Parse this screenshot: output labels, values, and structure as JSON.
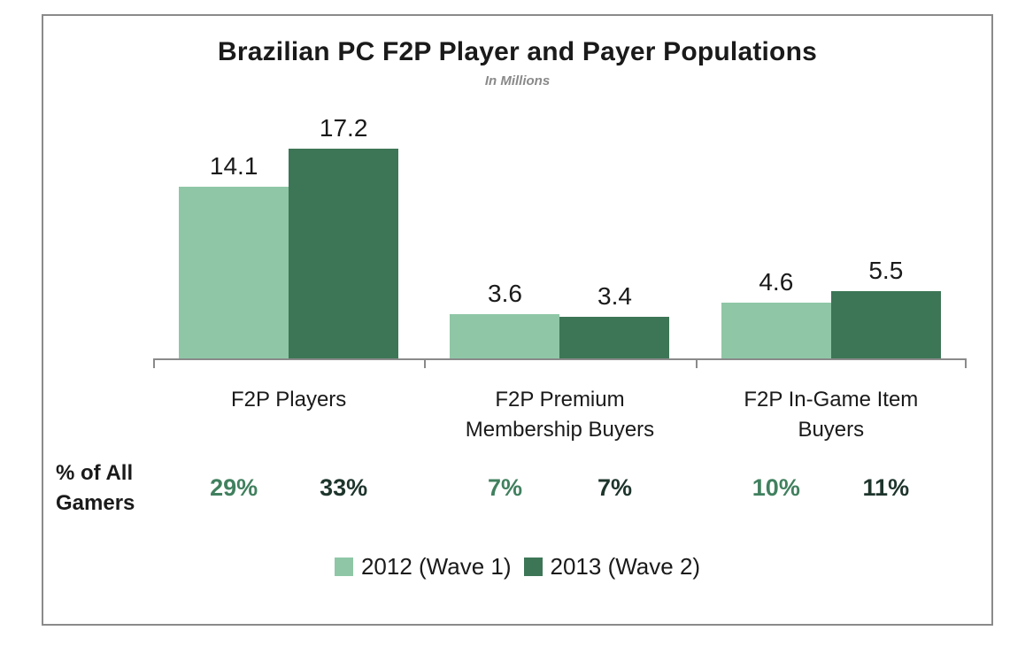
{
  "title": "Brazilian PC F2P Player and Payer Populations",
  "subtitle": "In Millions",
  "row_label_line1": "% of All",
  "row_label_line2": "Gamers",
  "legend": [
    {
      "label": "2012 (Wave 1)",
      "color": "#8fc7a6"
    },
    {
      "label": "2013 (Wave 2)",
      "color": "#3d7656"
    }
  ],
  "colors": {
    "series_2012_bar": "#8fc7a6",
    "series_2013_bar": "#3d7656",
    "pct_2012_text": "#41805f",
    "pct_2013_text": "#1e352c",
    "axis_and_border": "#8a8a8a",
    "subtitle_text": "#8a8a8a",
    "title_text": "#1a1a1a"
  },
  "chart_data": {
    "type": "bar",
    "title": "Brazilian PC F2P Player and Payer Populations",
    "subtitle": "In Millions",
    "xlabel": "",
    "ylabel": "",
    "unit": "millions",
    "ylim": [
      0,
      20
    ],
    "grid": false,
    "legend_position": "bottom",
    "value_labels_shown": true,
    "categories": [
      "F2P Players",
      "F2P Premium Membership Buyers",
      "F2P In-Game Item Buyers"
    ],
    "series": [
      {
        "name": "2012 (Wave 1)",
        "color": "#8fc7a6",
        "values": [
          14.1,
          3.6,
          4.6
        ],
        "pct_of_all_gamers": [
          "29%",
          "7%",
          "10%"
        ],
        "pct_color": "#41805f"
      },
      {
        "name": "2013 (Wave 2)",
        "color": "#3d7656",
        "values": [
          17.2,
          3.4,
          5.5
        ],
        "pct_of_all_gamers": [
          "33%",
          "7%",
          "11%"
        ],
        "pct_color": "#1e352c"
      }
    ]
  }
}
